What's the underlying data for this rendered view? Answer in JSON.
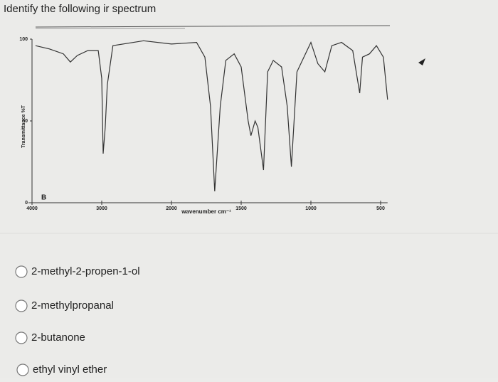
{
  "question": "Identify the following ir spectrum",
  "chart_data": {
    "type": "line",
    "ylabel": "Transmittance %T",
    "xlabel": "wavenumber cm⁻¹",
    "annotation": "B",
    "color": "#333333",
    "xlim": [
      4000,
      450
    ],
    "xticks": [
      4000,
      3000,
      2000,
      1500,
      1000,
      500
    ],
    "ylim": [
      0,
      100
    ],
    "yticks": [
      0,
      50,
      100
    ],
    "x": [
      3950,
      3750,
      3550,
      3450,
      3350,
      3200,
      3050,
      3000,
      2980,
      2950,
      2920,
      2840,
      2400,
      2000,
      1820,
      1760,
      1720,
      1690,
      1650,
      1610,
      1550,
      1500,
      1450,
      1430,
      1400,
      1380,
      1340,
      1310,
      1270,
      1210,
      1170,
      1140,
      1100,
      1050,
      1000,
      950,
      900,
      850,
      780,
      700,
      650,
      630,
      580,
      530,
      480,
      450
    ],
    "values": [
      96,
      94,
      91,
      86,
      90,
      93,
      93,
      76,
      30,
      46,
      72,
      96,
      99,
      97,
      98,
      89,
      59,
      7,
      59,
      87,
      91,
      83,
      50,
      41,
      50,
      46,
      20,
      80,
      87,
      83,
      59,
      22,
      80,
      89,
      98,
      85,
      80,
      96,
      98,
      93,
      67,
      89,
      91,
      96,
      89,
      63
    ]
  },
  "options": [
    "2-methyl-2-propen-1-ol",
    "2-methylpropanal",
    "2-butanone",
    "ethyl vinyl ether"
  ]
}
